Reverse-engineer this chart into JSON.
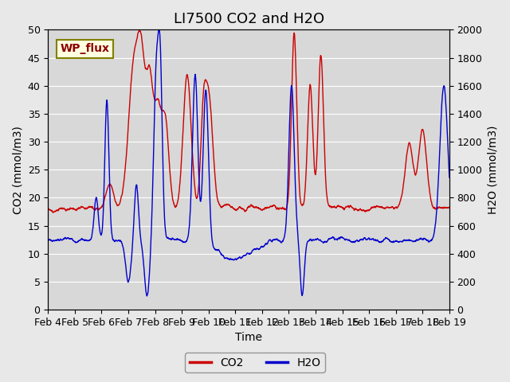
{
  "title": "LI7500 CO2 and H2O",
  "xlabel": "Time",
  "ylabel_left": "CO2 (mmol/m3)",
  "ylabel_right": "H2O (mmol/m3)",
  "annotation": "WP_flux",
  "ylim_left": [
    0,
    50
  ],
  "ylim_right": [
    0,
    2000
  ],
  "co2_color": "#cc0000",
  "h2o_color": "#0000cc",
  "background_color": "#e8e8e8",
  "plot_bg_color": "#d8d8d8",
  "x_tick_labels": [
    "Feb 4",
    "Feb 5",
    "Feb 6",
    "Feb 7",
    "Feb 8",
    "Feb 9",
    "Feb 10",
    "Feb 11",
    "Feb 12",
    "Feb 13",
    "Feb 14",
    "Feb 15",
    "Feb 16",
    "Feb 17",
    "Feb 18",
    "Feb 19"
  ],
  "legend_co2": "CO2",
  "legend_h2o": "H2O",
  "title_fontsize": 13,
  "axis_fontsize": 10,
  "tick_fontsize": 9
}
